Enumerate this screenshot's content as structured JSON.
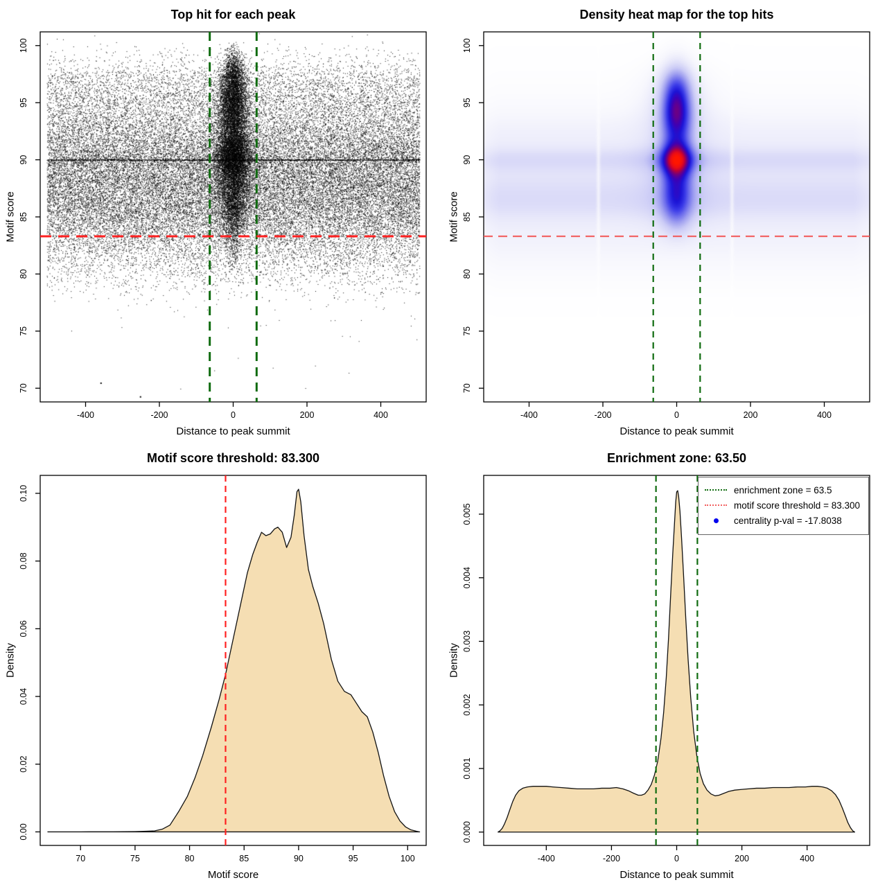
{
  "figure_bg": "#ffffff",
  "colors": {
    "red_line": "#ff2020",
    "red_line_soft": "#f25555",
    "green_line": "#0f6b0f",
    "wheat_fill": "#f5deb3",
    "curve_stroke": "#111111",
    "scatter_point": "#000000",
    "axis": "#000000",
    "legend_border": "#666666",
    "blue_dot": "#0000ee"
  },
  "chart_data": [
    {
      "type": "scatter",
      "title": "Top hit for each peak",
      "xlabel": "Distance to peak summit",
      "ylabel": "Motif score",
      "x_range": [
        -523,
        523
      ],
      "y_range": [
        68.8,
        101.2
      ],
      "x_ticks": [
        [
          -400,
          "-400"
        ],
        [
          -200,
          "-200"
        ],
        [
          0,
          "0"
        ],
        [
          200,
          "200"
        ],
        [
          400,
          "400"
        ]
      ],
      "y_ticks": [
        [
          70,
          "70"
        ],
        [
          75,
          "75"
        ],
        [
          80,
          "80"
        ],
        [
          85,
          "85"
        ],
        [
          90,
          "90"
        ],
        [
          95,
          "95"
        ],
        [
          100,
          "100"
        ]
      ],
      "grid": false,
      "threshold_y": 83.3,
      "zone_x": 63.5,
      "cloud": {
        "seed": 1234567,
        "n_background": 40000,
        "n_cluster": 14000,
        "x_background_range": [
          -505,
          505
        ],
        "line90": {
          "y": 90,
          "frac": 0.035,
          "jitter": 0.1
        },
        "cluster_mixture": [
          [
            93.2,
            2.2,
            0.3
          ],
          [
            90.3,
            1.1,
            0.22
          ],
          [
            95.8,
            1.5,
            0.16
          ],
          [
            88.0,
            1.6,
            0.16
          ],
          [
            86.0,
            1.3,
            0.08
          ],
          [
            97.8,
            0.9,
            0.05
          ],
          [
            83.2,
            1.4,
            0.03
          ]
        ],
        "cluster_sigma_x_by_y": [
          [
            81,
            11
          ],
          [
            83,
            14
          ],
          [
            85,
            19
          ],
          [
            88,
            24
          ],
          [
            91,
            24
          ],
          [
            94,
            22
          ],
          [
            97,
            18
          ],
          [
            99.5,
            13
          ]
        ],
        "outliers": [
          [
            -360,
            70.5
          ],
          [
            -253,
            69.3
          ]
        ]
      }
    },
    {
      "type": "heatmap",
      "title": "Density heat map for the top hits",
      "xlabel": "Distance to peak summit",
      "ylabel": "Motif score",
      "x_range": [
        -523,
        523
      ],
      "y_range": [
        68.8,
        101.2
      ],
      "x_ticks": [
        [
          -400,
          "-400"
        ],
        [
          -200,
          "-200"
        ],
        [
          0,
          "0"
        ],
        [
          200,
          "200"
        ],
        [
          400,
          "400"
        ]
      ],
      "y_ticks": [
        [
          70,
          "70"
        ],
        [
          75,
          "75"
        ],
        [
          80,
          "80"
        ],
        [
          85,
          "85"
        ],
        [
          90,
          "90"
        ],
        [
          95,
          "95"
        ],
        [
          100,
          "100"
        ]
      ],
      "grid": false,
      "threshold_y": 83.3,
      "zone_x": 63.5,
      "density_model": {
        "hotspot": [
          0,
          90
        ],
        "background_bands": [
          [
            88.2,
            4.6,
            1.0
          ],
          [
            90.0,
            0.75,
            0.9
          ],
          [
            87.4,
            1.3,
            0.65
          ],
          [
            85.9,
            1.0,
            0.5
          ],
          [
            92.3,
            1.4,
            0.3
          ],
          [
            83.5,
            1.6,
            0.25
          ],
          [
            81.3,
            1.8,
            0.18
          ]
        ],
        "background_amp": 0.4,
        "center_profile": [
          [
            90.0,
            1.0,
            1.0
          ],
          [
            92.8,
            2.4,
            0.85
          ],
          [
            95.0,
            1.7,
            0.8
          ],
          [
            88.0,
            1.5,
            0.62
          ],
          [
            86.3,
            1.3,
            0.42
          ],
          [
            96.9,
            1.1,
            0.28
          ],
          [
            84.8,
            1.2,
            0.3
          ],
          [
            98.3,
            1.3,
            0.1
          ]
        ],
        "center_sigma_x": 29,
        "halo_sigma_x": 62,
        "halo_weight": 0.22,
        "total_scale": 2.05,
        "white_gaps_x": [
          -212,
          150
        ],
        "colormap": [
          [
            0,
            255,
            255,
            255
          ],
          [
            0.06,
            247,
            247,
            253
          ],
          [
            0.14,
            231,
            231,
            250
          ],
          [
            0.25,
            203,
            203,
            246
          ],
          [
            0.36,
            158,
            158,
            240
          ],
          [
            0.46,
            108,
            108,
            236
          ],
          [
            0.55,
            58,
            58,
            232
          ],
          [
            0.63,
            28,
            20,
            214
          ],
          [
            0.7,
            64,
            0,
            178
          ],
          [
            0.78,
            122,
            0,
            118
          ],
          [
            0.85,
            188,
            0,
            58
          ],
          [
            0.92,
            232,
            12,
            24
          ],
          [
            1,
            255,
            22,
            0
          ]
        ]
      }
    },
    {
      "type": "area",
      "title": "Motif score threshold: 83.300",
      "xlabel": "Motif score",
      "ylabel": "Density",
      "x_range": [
        66.3,
        101.7
      ],
      "y_range": [
        -0.004,
        0.1053
      ],
      "x_ticks": [
        [
          70,
          "70"
        ],
        [
          75,
          "75"
        ],
        [
          80,
          "80"
        ],
        [
          85,
          "85"
        ],
        [
          90,
          "90"
        ],
        [
          95,
          "95"
        ],
        [
          100,
          "100"
        ]
      ],
      "y_ticks": [
        [
          0,
          "0.00"
        ],
        [
          0.02,
          "0.02"
        ],
        [
          0.04,
          "0.04"
        ],
        [
          0.06,
          "0.06"
        ],
        [
          0.08,
          "0.08"
        ],
        [
          0.1,
          "0.10"
        ]
      ],
      "grid": false,
      "threshold_x": 83.3,
      "curve": [
        [
          67,
          2e-05
        ],
        [
          70,
          2e-05
        ],
        [
          73,
          4e-05
        ],
        [
          75,
          0.0001
        ],
        [
          76,
          0.0002
        ],
        [
          76.8,
          0.0003
        ],
        [
          77.5,
          0.0008
        ],
        [
          78.2,
          0.002
        ],
        [
          79,
          0.006
        ],
        [
          79.8,
          0.0105
        ],
        [
          80.5,
          0.016
        ],
        [
          81.2,
          0.0225
        ],
        [
          82,
          0.031
        ],
        [
          82.7,
          0.039
        ],
        [
          83.3,
          0.0465
        ],
        [
          84,
          0.057
        ],
        [
          84.7,
          0.0675
        ],
        [
          85.3,
          0.0765
        ],
        [
          85.8,
          0.082
        ],
        [
          86.2,
          0.0855
        ],
        [
          86.6,
          0.0885
        ],
        [
          87,
          0.0875
        ],
        [
          87.4,
          0.088
        ],
        [
          87.8,
          0.0895
        ],
        [
          88.1,
          0.09
        ],
        [
          88.5,
          0.0885
        ],
        [
          88.9,
          0.084
        ],
        [
          89.3,
          0.087
        ],
        [
          89.6,
          0.0935
        ],
        [
          89.85,
          0.1005
        ],
        [
          90,
          0.1012
        ],
        [
          90.2,
          0.0975
        ],
        [
          90.5,
          0.0875
        ],
        [
          90.9,
          0.0775
        ],
        [
          91.3,
          0.0725
        ],
        [
          91.8,
          0.0675
        ],
        [
          92.3,
          0.0615
        ],
        [
          93,
          0.051
        ],
        [
          93.6,
          0.0445
        ],
        [
          94.2,
          0.0415
        ],
        [
          94.8,
          0.0405
        ],
        [
          95.3,
          0.038
        ],
        [
          95.8,
          0.0355
        ],
        [
          96.3,
          0.034
        ],
        [
          96.8,
          0.0295
        ],
        [
          97.3,
          0.0235
        ],
        [
          97.8,
          0.0165
        ],
        [
          98.3,
          0.0105
        ],
        [
          98.8,
          0.006
        ],
        [
          99.3,
          0.0032
        ],
        [
          99.8,
          0.0015
        ],
        [
          100.3,
          0.0006
        ],
        [
          100.8,
          0.0002
        ],
        [
          101.1,
          0
        ]
      ]
    },
    {
      "type": "area",
      "title": "Enrichment zone: 63.50",
      "xlabel": "Distance to peak summit",
      "ylabel": "Density",
      "x_range": [
        -592,
        592
      ],
      "y_range": [
        -0.00021,
        0.00561
      ],
      "x_ticks": [
        [
          -400,
          "-400"
        ],
        [
          -200,
          "-200"
        ],
        [
          0,
          "0"
        ],
        [
          200,
          "200"
        ],
        [
          400,
          "400"
        ]
      ],
      "y_ticks": [
        [
          0,
          "0.000"
        ],
        [
          0.001,
          "0.001"
        ],
        [
          0.002,
          "0.002"
        ],
        [
          0.003,
          "0.003"
        ],
        [
          0.004,
          "0.004"
        ],
        [
          0.005,
          "0.005"
        ]
      ],
      "grid": false,
      "zone_x": 63.5,
      "curve": [
        [
          -548,
          0
        ],
        [
          -542,
          2e-05
        ],
        [
          -535,
          6e-05
        ],
        [
          -528,
          0.00013
        ],
        [
          -520,
          0.00023
        ],
        [
          -512,
          0.00035
        ],
        [
          -503,
          0.00048
        ],
        [
          -494,
          0.00058
        ],
        [
          -484,
          0.00065
        ],
        [
          -472,
          0.00069
        ],
        [
          -458,
          0.00071
        ],
        [
          -440,
          0.00072
        ],
        [
          -420,
          0.00072
        ],
        [
          -400,
          0.00072
        ],
        [
          -380,
          0.00071
        ],
        [
          -355,
          0.0007
        ],
        [
          -330,
          0.00069
        ],
        [
          -305,
          0.00068
        ],
        [
          -280,
          0.00068
        ],
        [
          -255,
          0.00068
        ],
        [
          -230,
          0.00069
        ],
        [
          -205,
          0.00069
        ],
        [
          -185,
          0.0007
        ],
        [
          -165,
          0.00068
        ],
        [
          -148,
          0.00065
        ],
        [
          -132,
          0.00061
        ],
        [
          -118,
          0.00058
        ],
        [
          -108,
          0.00058
        ],
        [
          -98,
          0.0006
        ],
        [
          -88,
          0.00066
        ],
        [
          -78,
          0.00075
        ],
        [
          -68,
          0.0009
        ],
        [
          -58,
          0.00112
        ],
        [
          -48,
          0.00148
        ],
        [
          -40,
          0.00188
        ],
        [
          -32,
          0.00243
        ],
        [
          -25,
          0.00305
        ],
        [
          -18,
          0.00378
        ],
        [
          -12,
          0.00438
        ],
        [
          -7,
          0.00483
        ],
        [
          -3,
          0.00519
        ],
        [
          0,
          0.00535
        ],
        [
          3,
          0.00537
        ],
        [
          6,
          0.00528
        ],
        [
          10,
          0.00505
        ],
        [
          15,
          0.00462
        ],
        [
          21,
          0.00405
        ],
        [
          28,
          0.00335
        ],
        [
          35,
          0.00272
        ],
        [
          43,
          0.00212
        ],
        [
          52,
          0.00159
        ],
        [
          62,
          0.00119
        ],
        [
          72,
          0.00092
        ],
        [
          82,
          0.00076
        ],
        [
          93,
          0.00066
        ],
        [
          105,
          0.0006
        ],
        [
          118,
          0.00057
        ],
        [
          130,
          0.00058
        ],
        [
          145,
          0.00061
        ],
        [
          160,
          0.00064
        ],
        [
          178,
          0.00066
        ],
        [
          198,
          0.00067
        ],
        [
          220,
          0.00068
        ],
        [
          245,
          0.00069
        ],
        [
          270,
          0.00069
        ],
        [
          295,
          0.0007
        ],
        [
          320,
          0.0007
        ],
        [
          345,
          0.0007
        ],
        [
          370,
          0.00071
        ],
        [
          395,
          0.00071
        ],
        [
          415,
          0.00072
        ],
        [
          432,
          0.00072
        ],
        [
          448,
          0.00071
        ],
        [
          462,
          0.00069
        ],
        [
          475,
          0.00065
        ],
        [
          487,
          0.00059
        ],
        [
          498,
          0.0005
        ],
        [
          508,
          0.00038
        ],
        [
          517,
          0.00026
        ],
        [
          525,
          0.00015
        ],
        [
          533,
          7e-05
        ],
        [
          540,
          2e-05
        ],
        [
          546,
          0
        ]
      ],
      "legend": {
        "items": [
          {
            "label": "enrichment zone = 63.5",
            "swatch": "dotted-line",
            "color": "#0f6b0f"
          },
          {
            "label": "motif score threshold = 83.300",
            "swatch": "dotted-line",
            "color": "#f26060"
          },
          {
            "label": "centrality p-val = -17.8038",
            "swatch": "dot",
            "color": "#0000ee"
          }
        ]
      }
    }
  ]
}
